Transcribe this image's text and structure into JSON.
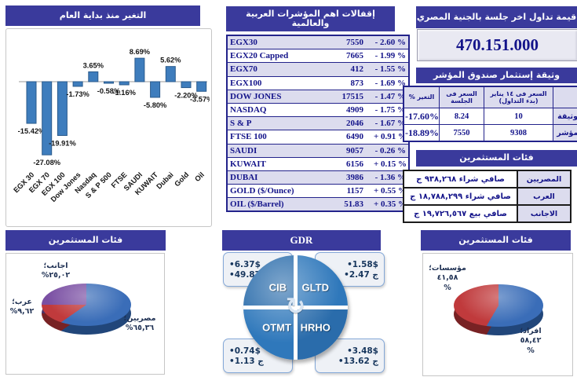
{
  "colors": {
    "header_bg": "#3a3a9c",
    "navy_text": "#14148a",
    "row_alt": "#dcdcee",
    "bar_fill": "#3e7dbd",
    "bar_stroke": "#2a5a8c",
    "pie_blue": "#3a6db8",
    "pie_red": "#c03a3c",
    "pie_purple": "#7a4fa3",
    "gdr_blue": "#2f78bb"
  },
  "chart_data": [
    {
      "type": "bar",
      "title": "التغير منذ بداية العام",
      "categories": [
        "EGX 30",
        "EGX 70",
        "EGX 100",
        "Dow Jones",
        "Nasdaq",
        "S & P 500",
        "FTSE",
        "SAUDI",
        "KUWAIT",
        "Dubai",
        "Gold",
        "Oil"
      ],
      "values": [
        -15.42,
        -27.08,
        -19.91,
        -1.73,
        3.65,
        -0.58,
        -1.16,
        8.69,
        -5.8,
        5.62,
        -2.2,
        -3.57
      ],
      "value_labels": [
        "-15.42%",
        "-27.08%",
        "-19.91%",
        "-1.73%",
        "3.65%",
        "-0.58%",
        "-1.16%",
        "8.69%",
        "-5.80%",
        "5.62%",
        "-2.20%",
        "-3.57%"
      ],
      "xlabel": "",
      "ylabel": "",
      "ylim": [
        -30,
        12
      ],
      "grid": false,
      "legend": "none"
    },
    {
      "type": "pie",
      "title": "فئات المستثمرين",
      "slices": [
        {
          "label": "مصريين؛",
          "value": 65.36,
          "pct_label": "%٦٥,٣٦",
          "color": "#3a6db8",
          "dark": "#234a80"
        },
        {
          "label": "عرب؛",
          "value": 9.62,
          "pct_label": "%٩,٦٢",
          "color": "#c03a3c",
          "dark": "#7e2426"
        },
        {
          "label": "اجانب؛",
          "value": 25.02,
          "pct_label": "%٢٥,٠٢",
          "color": "#7a4fa3",
          "dark": "#4e3269"
        }
      ]
    },
    {
      "type": "pie",
      "title": "فئات المستثمرين",
      "slices": [
        {
          "label": "افراد؛",
          "value": 58.42,
          "pct_label": "٥٨,٤٢",
          "sign": "%",
          "color": "#3a6db8",
          "dark": "#234a80"
        },
        {
          "label": "مؤسسات؛",
          "value": 41.58,
          "pct_label": "٤١,٥٨",
          "sign": "%",
          "color": "#c03a3c",
          "dark": "#7e2426"
        }
      ]
    }
  ],
  "index_table": {
    "title": "إقفالات اهم المؤشرات العربية والعالمية",
    "rows": [
      {
        "name": "EGX30",
        "close": "7550",
        "change": "- 2.60 %"
      },
      {
        "name": "EGX20 Capped",
        "close": "7665",
        "change": "- 1.99 %"
      },
      {
        "name": "EGX70",
        "close": "412",
        "change": "- 1.55 %"
      },
      {
        "name": "EGX100",
        "close": "873",
        "change": "- 1.69 %"
      },
      {
        "name": "DOW JONES",
        "close": "17515",
        "change": "- 1.47 %"
      },
      {
        "name": "NASDAQ",
        "close": "4909",
        "change": "- 1.75 %"
      },
      {
        "name": "S & P",
        "close": "2046",
        "change": "- 1.67 %"
      },
      {
        "name": "FTSE 100",
        "close": "6490",
        "change": "+ 0.91 %"
      },
      {
        "name": "SAUDI",
        "close": "9057",
        "change": "- 0.26 %"
      },
      {
        "name": "KUWAIT",
        "close": "6156",
        "change": "+ 0.15 %"
      },
      {
        "name": "DUBAI",
        "close": "3986",
        "change": "- 1.36 %"
      },
      {
        "name": "GOLD ($/Ounce)",
        "close": "1157",
        "change": "+ 0.55 %"
      },
      {
        "name": "OIL ($/Barrel)",
        "close": "51.83",
        "change": "+ 0.35 %"
      }
    ]
  },
  "trading": {
    "title": "قيمة تداول اخر جلسة بالجنية المصري",
    "value": "470.151.000"
  },
  "fund": {
    "title": "وثيقة إستثمار صندوق المؤشر",
    "headers": {
      "start": "السعر فى ١٤ يناير (بدء التداول)",
      "session": "السعر فى الجلسة",
      "change": "التغير %"
    },
    "rows": [
      {
        "label": "الوثيقة",
        "start": "10",
        "session": "8.24",
        "change": "-17.60%"
      },
      {
        "label": "المؤشر",
        "start": "9308",
        "session": "7550",
        "change": "-18.89%"
      }
    ]
  },
  "flows": {
    "title": "فئات المستثمرين",
    "rows": [
      {
        "label": "المصريين",
        "value": "صافي شراء ٩٣٨,٢٦٨ ج"
      },
      {
        "label": "العرب",
        "value": "صافي شراء ١٨,٧٨٨,٢٩٩ ج"
      },
      {
        "label": "الاجانب",
        "value": "صافي بيع ١٩,٧٢٦,٥٦٧ ج"
      }
    ]
  },
  "gdr": {
    "title": "GDR",
    "quadrants": [
      {
        "name": "CIB",
        "usd": "•6.37$",
        "egp": "•49.87 ج"
      },
      {
        "name": "GLTD",
        "usd": "•1.58$",
        "egp": "•2.47 ج"
      },
      {
        "name": "OTMT",
        "usd": "•0.74$",
        "egp": "•1.13 ج"
      },
      {
        "name": "HRHO",
        "usd": "•3.48$",
        "egp": "•13.62 ج"
      }
    ]
  },
  "icons": {
    "cycle_arrows": "↻"
  }
}
